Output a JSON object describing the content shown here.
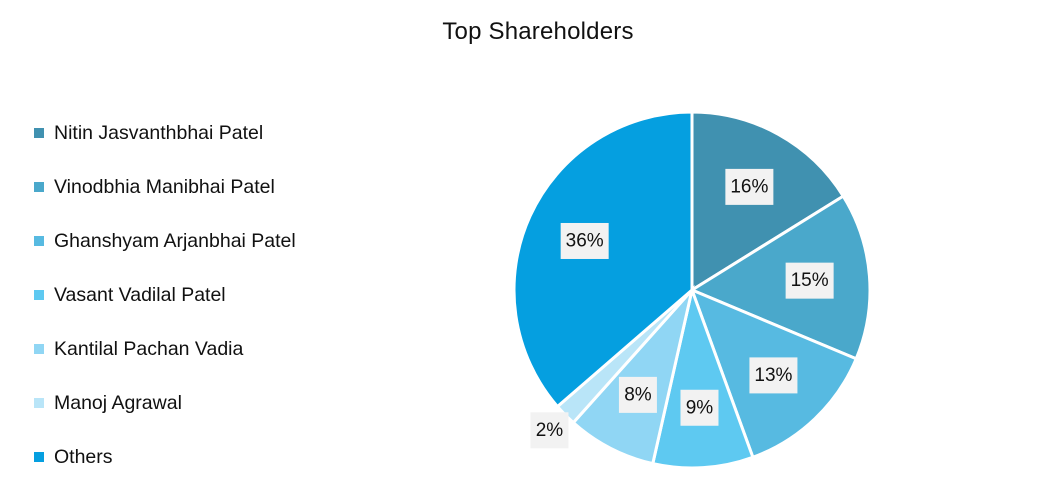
{
  "chart_data": {
    "type": "pie",
    "title": "Top Shareholders",
    "legend_position": "left",
    "slices": [
      {
        "name": "Nitin Jasvanthbhai Patel",
        "value": 16,
        "label": "16%",
        "color": "#4091b0"
      },
      {
        "name": "Vinodbhia Manibhai Patel",
        "value": 15,
        "label": "15%",
        "color": "#4aa8cb"
      },
      {
        "name": "Ghanshyam Arjanbhai Patel",
        "value": 13,
        "label": "13%",
        "color": "#57bae1"
      },
      {
        "name": "Vasant Vadilal Patel",
        "value": 9,
        "label": "9%",
        "color": "#5ec9f1"
      },
      {
        "name": "Kantilal Pachan Vadia",
        "value": 8,
        "label": "8%",
        "color": "#90d6f4"
      },
      {
        "name": "Manoj Agrawal",
        "value": 2,
        "label": "2%",
        "color": "#b9e5f8"
      },
      {
        "name": "Others",
        "value": 36,
        "label": "36%",
        "color": "#059fe0"
      }
    ]
  }
}
